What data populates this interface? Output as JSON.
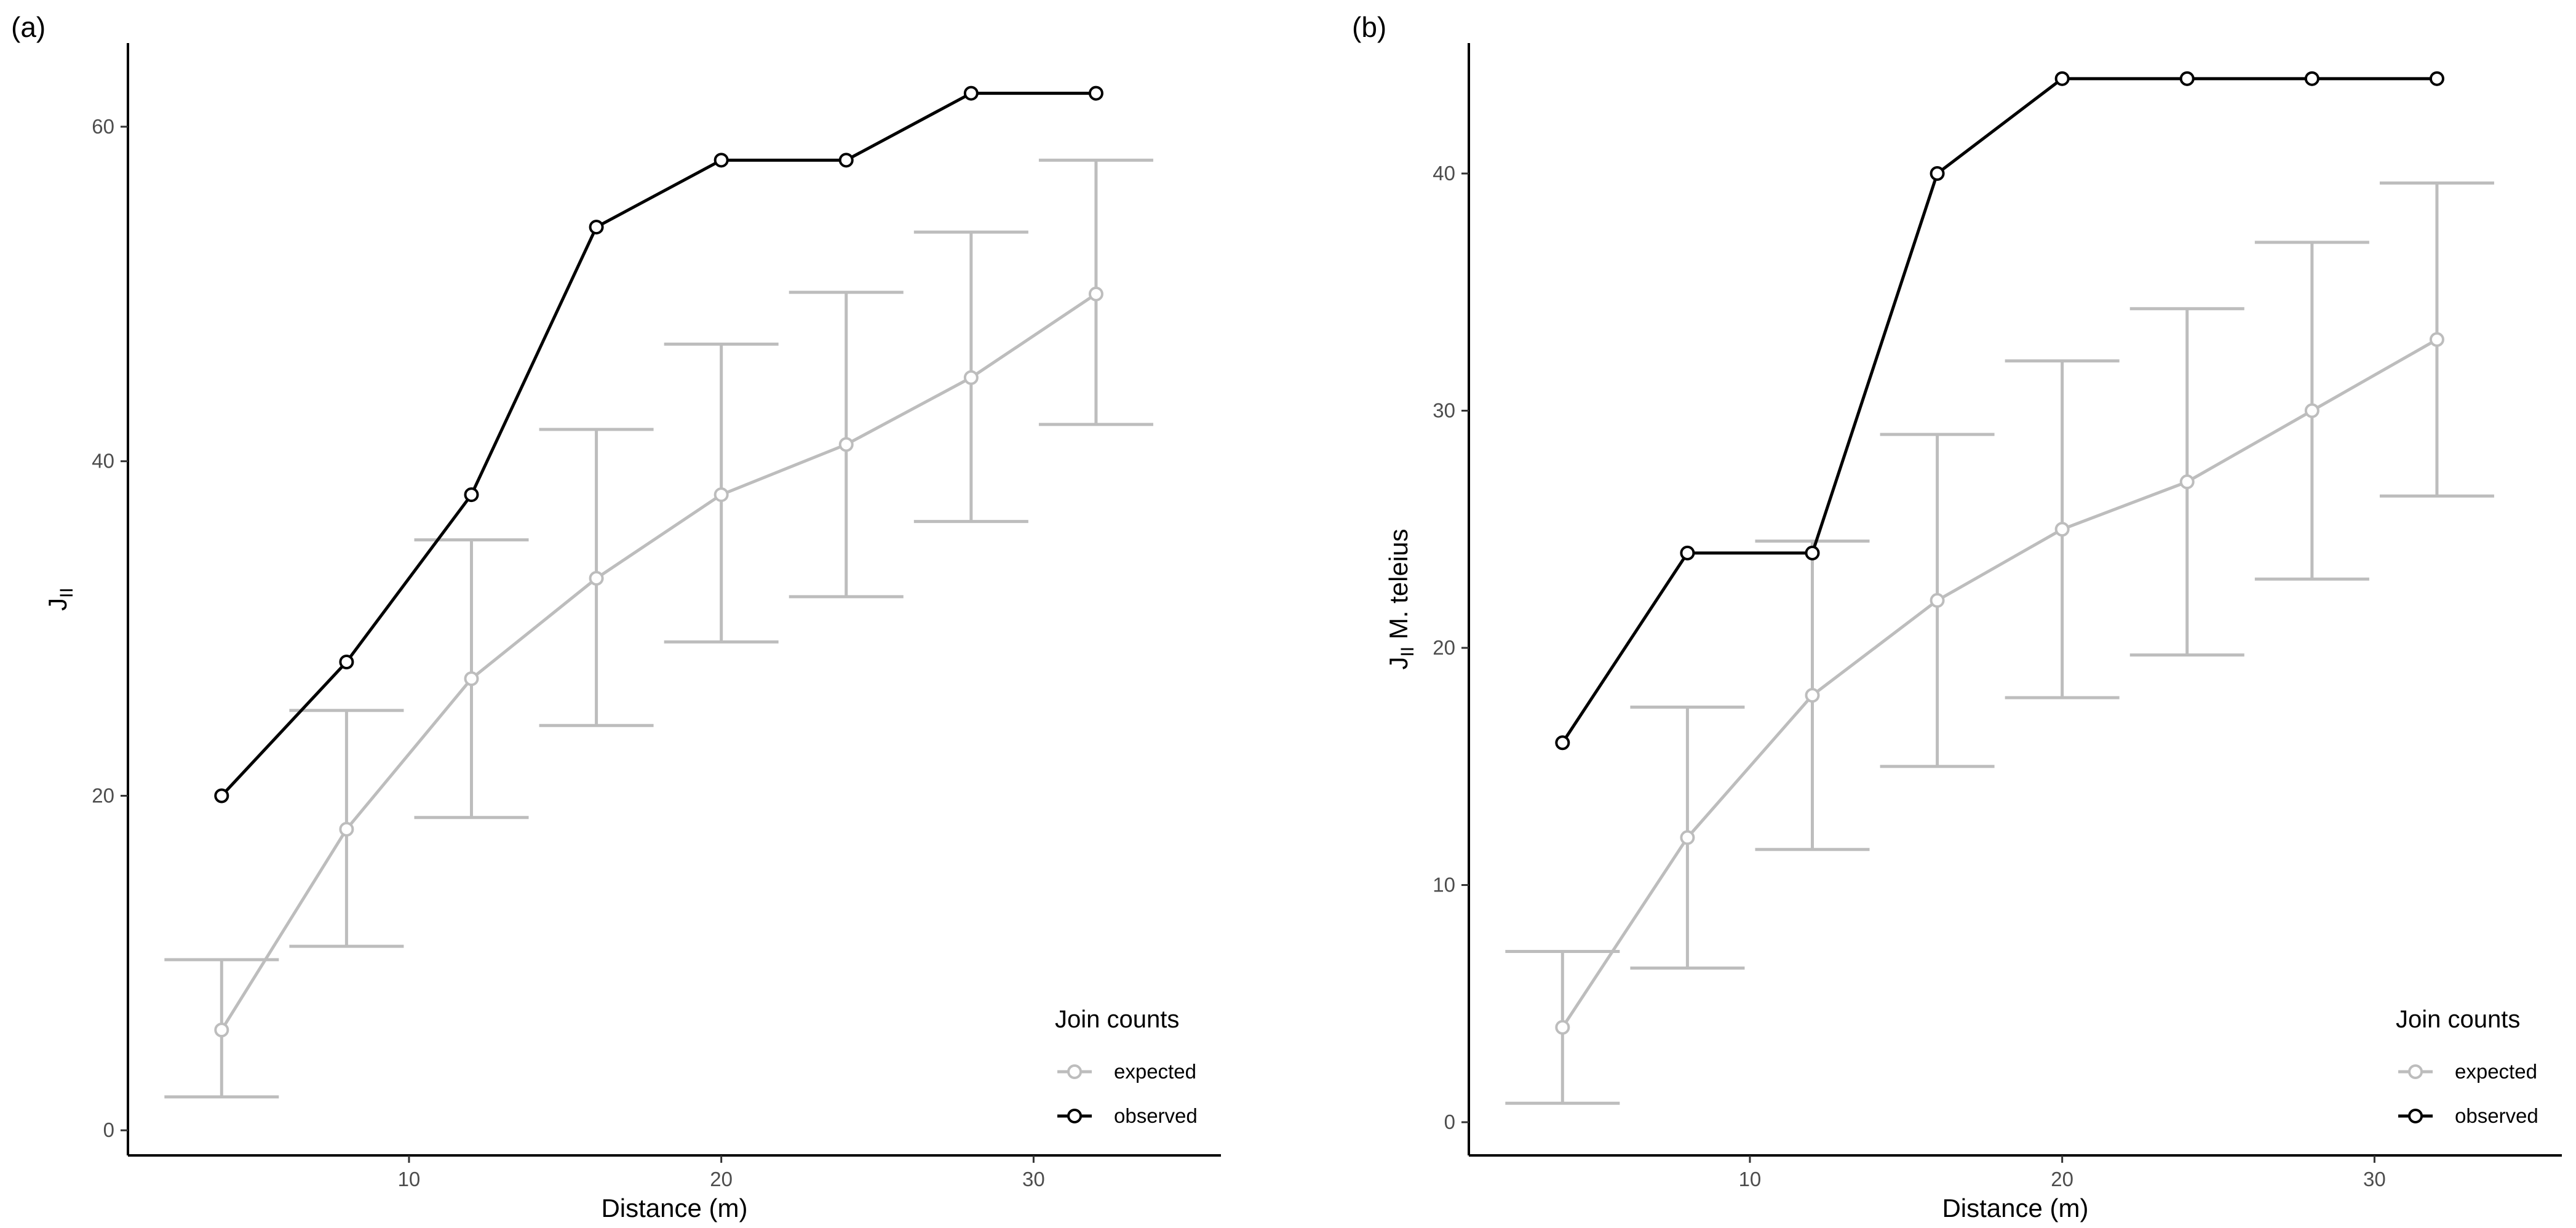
{
  "chart_data": [
    {
      "type": "line",
      "panel_label": "(a)",
      "title": "",
      "xlabel": "Distance (m)",
      "ylabel": {
        "main": "J",
        "sub": "II",
        "suffix": ""
      },
      "xlim": [
        1,
        36
      ],
      "ylim": [
        -1.5,
        65
      ],
      "xticks": [
        10,
        20,
        30
      ],
      "yticks": [
        0,
        20,
        40,
        60
      ],
      "x": [
        4,
        8,
        12,
        16,
        20,
        24,
        28,
        32
      ],
      "series": [
        {
          "name": "expected",
          "color": "#bdbdbd",
          "values": [
            6,
            18,
            27,
            33,
            38,
            41,
            45,
            50
          ],
          "error_low": [
            2,
            11,
            18.7,
            24.2,
            29.2,
            31.9,
            36.4,
            42.2
          ],
          "error_high": [
            10.2,
            25.1,
            35.3,
            41.9,
            47,
            50.1,
            53.7,
            58
          ]
        },
        {
          "name": "observed",
          "color": "#000000",
          "values": [
            20,
            28,
            38,
            54,
            58,
            58,
            62,
            62
          ]
        }
      ],
      "legend": {
        "title": "Join counts",
        "placement": "bottom-right",
        "entries": [
          "expected",
          "observed"
        ]
      },
      "grid": false
    },
    {
      "type": "line",
      "panel_label": "(b)",
      "title": "",
      "xlabel": "Distance (m)",
      "ylabel": {
        "main": "J",
        "sub": "II",
        "suffix": " M. teleius"
      },
      "xlim": [
        1,
        36
      ],
      "ylim": [
        -1.4,
        45.5
      ],
      "xticks": [
        10,
        20,
        30
      ],
      "yticks": [
        0,
        10,
        20,
        30,
        40
      ],
      "x": [
        4,
        8,
        12,
        16,
        20,
        24,
        28,
        32
      ],
      "series": [
        {
          "name": "expected",
          "color": "#bdbdbd",
          "values": [
            4,
            12,
            18,
            22,
            25,
            27,
            30,
            33
          ],
          "error_low": [
            0.8,
            6.5,
            11.5,
            15,
            17.9,
            19.7,
            22.9,
            26.4
          ],
          "error_high": [
            7.2,
            17.5,
            24.5,
            29,
            32.1,
            34.3,
            37.1,
            39.6
          ]
        },
        {
          "name": "observed",
          "color": "#000000",
          "values": [
            16,
            24,
            24,
            40,
            44,
            44,
            44,
            44
          ]
        }
      ],
      "legend": {
        "title": "Join counts",
        "placement": "bottom-right",
        "entries": [
          "expected",
          "observed"
        ]
      },
      "grid": false
    }
  ]
}
